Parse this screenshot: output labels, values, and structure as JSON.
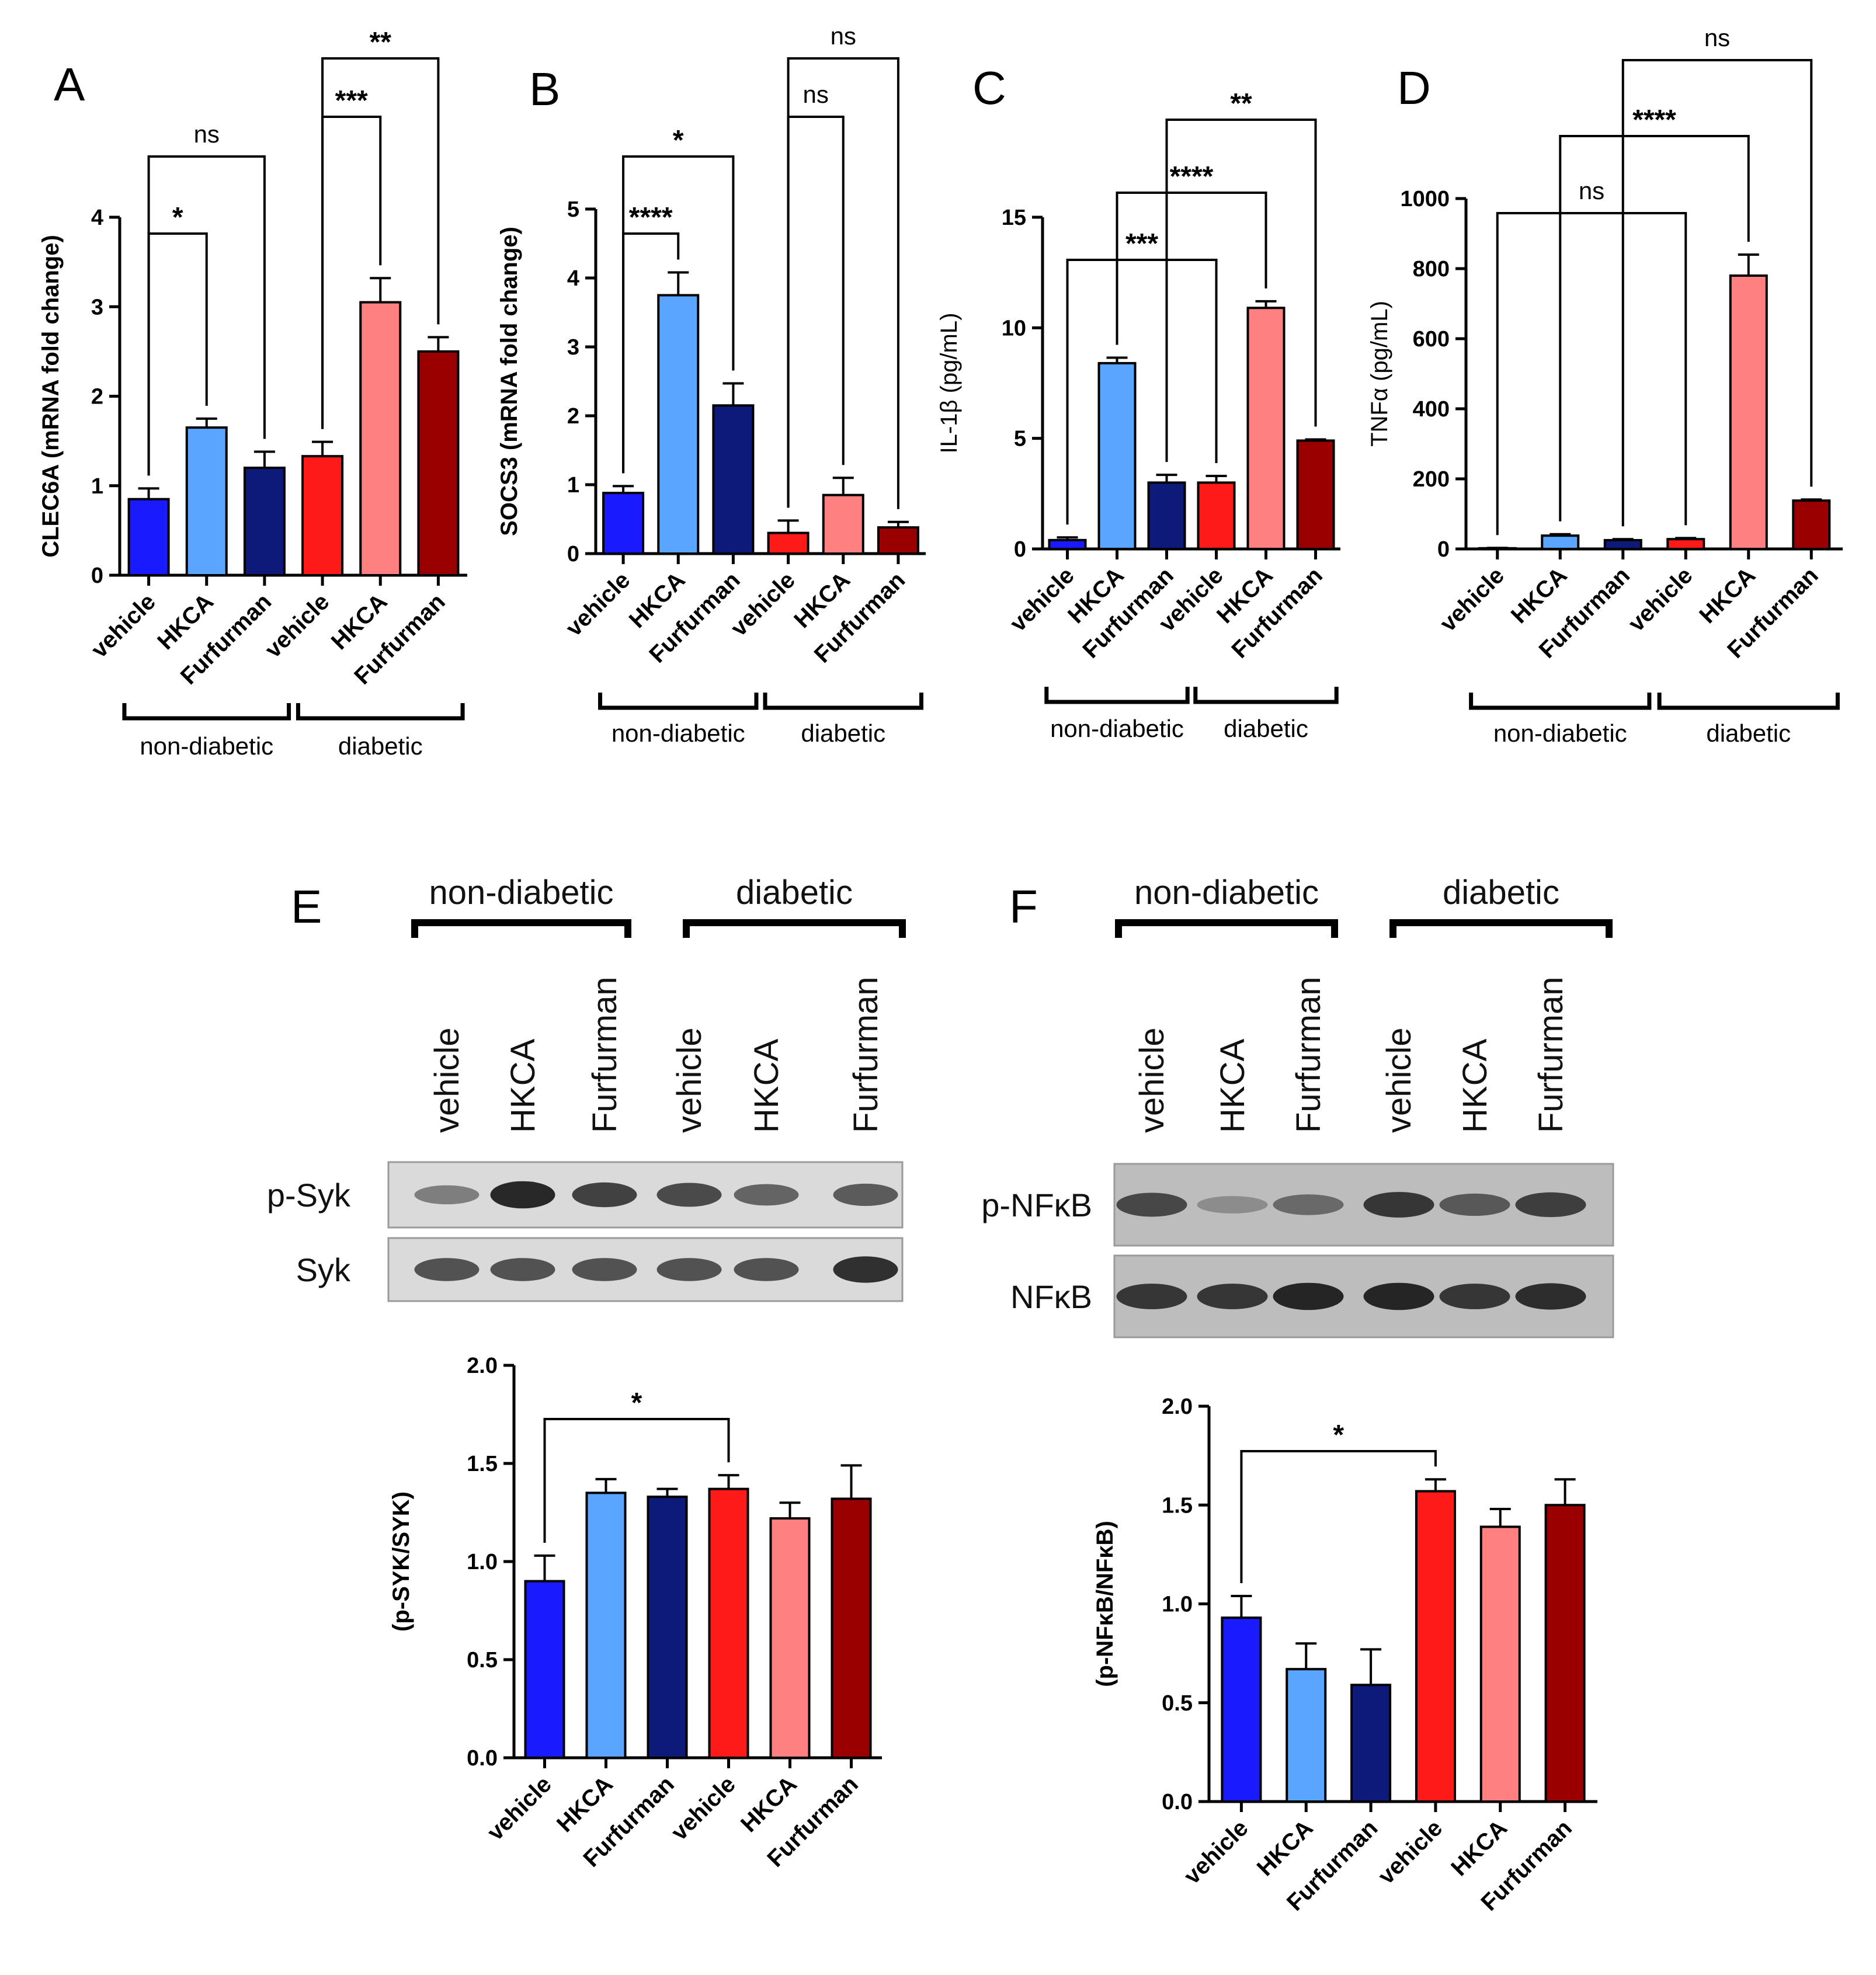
{
  "colors": {
    "blue": "#1a1aff",
    "light_blue": "#5aa5ff",
    "navy": "#0d1a7a",
    "red": "#ff1a1a",
    "pink": "#ff8080",
    "dark_red": "#9b0000",
    "black": "#000000"
  },
  "chart_data": [
    {
      "id": "A",
      "panel_label": "A",
      "type": "bar",
      "ylabel": "CLEC6A (mRNA fold change)",
      "categories": [
        "vehicle",
        "HKCA",
        "Furfurman",
        "vehicle",
        "HKCA",
        "Furfurman"
      ],
      "values": [
        0.85,
        1.65,
        1.2,
        1.33,
        3.05,
        2.5
      ],
      "errors": [
        0.12,
        0.1,
        0.18,
        0.16,
        0.27,
        0.16
      ],
      "ylim": [
        0,
        4
      ],
      "yticks": [
        "0",
        "1",
        "2",
        "3",
        "4"
      ],
      "groups": [
        "non-diabetic",
        "diabetic"
      ],
      "comparisons": [
        {
          "from": 0,
          "to": 1,
          "label": "*"
        },
        {
          "from": 0,
          "to": 2,
          "label": "ns"
        },
        {
          "from": 3,
          "to": 4,
          "label": "***"
        },
        {
          "from": 3,
          "to": 5,
          "label": "**"
        }
      ]
    },
    {
      "id": "B",
      "panel_label": "B",
      "type": "bar",
      "ylabel": "SOCS3 (mRNA fold change)",
      "categories": [
        "vehicle",
        "HKCA",
        "Furfurman",
        "vehicle",
        "HKCA",
        "Furfurman"
      ],
      "values": [
        0.88,
        3.75,
        2.15,
        0.3,
        0.85,
        0.38
      ],
      "errors": [
        0.1,
        0.33,
        0.32,
        0.18,
        0.25,
        0.08
      ],
      "ylim": [
        0,
        5
      ],
      "yticks": [
        "0",
        "1",
        "2",
        "3",
        "4",
        "5"
      ],
      "groups": [
        "non-diabetic",
        "diabetic"
      ],
      "comparisons": [
        {
          "from": 0,
          "to": 1,
          "label": "****"
        },
        {
          "from": 0,
          "to": 2,
          "label": "*"
        },
        {
          "from": 3,
          "to": 4,
          "label": "ns"
        },
        {
          "from": 3,
          "to": 5,
          "label": "ns"
        }
      ]
    },
    {
      "id": "C",
      "panel_label": "C",
      "type": "bar",
      "ylabel": "IL-1β (pg/mL)",
      "categories": [
        "vehicle",
        "HKCA",
        "Furfurman",
        "vehicle",
        "HKCA",
        "Furfurman"
      ],
      "values": [
        0.4,
        8.4,
        3.0,
        3.0,
        10.9,
        4.9
      ],
      "errors": [
        0.12,
        0.25,
        0.35,
        0.3,
        0.3,
        0.05
      ],
      "ylim": [
        0,
        15
      ],
      "yticks": [
        "0",
        "5",
        "10",
        "15"
      ],
      "groups": [
        "non-diabetic",
        "diabetic"
      ],
      "comparisons": [
        {
          "from": 0,
          "to": 3,
          "label": "***"
        },
        {
          "from": 1,
          "to": 4,
          "label": "****"
        },
        {
          "from": 2,
          "to": 5,
          "label": "**"
        }
      ]
    },
    {
      "id": "D",
      "panel_label": "D",
      "type": "bar",
      "ylabel": "TNFα (pg/mL)",
      "categories": [
        "vehicle",
        "HKCA",
        "Furfurman",
        "vehicle",
        "HKCA",
        "Furfurman"
      ],
      "values": [
        2,
        38,
        25,
        28,
        780,
        138
      ],
      "errors": [
        1,
        4,
        3,
        3,
        60,
        3
      ],
      "ylim": [
        0,
        1000
      ],
      "yticks": [
        "0",
        "200",
        "400",
        "600",
        "800",
        "1000"
      ],
      "groups": [
        "non-diabetic",
        "diabetic"
      ],
      "comparisons": [
        {
          "from": 0,
          "to": 3,
          "label": "ns"
        },
        {
          "from": 1,
          "to": 4,
          "label": "****"
        },
        {
          "from": 2,
          "to": 5,
          "label": "ns"
        }
      ]
    },
    {
      "id": "E",
      "panel_label": "E",
      "type": "bar",
      "ylabel": "(p-SYK/SYK)",
      "categories": [
        "vehicle",
        "HKCA",
        "Furfurman",
        "vehicle",
        "HKCA",
        "Furfurman"
      ],
      "values": [
        0.9,
        1.35,
        1.33,
        1.37,
        1.22,
        1.32
      ],
      "errors": [
        0.13,
        0.07,
        0.04,
        0.07,
        0.08,
        0.17
      ],
      "ylim": [
        0,
        2
      ],
      "yticks": [
        "0.0",
        "0.5",
        "1.0",
        "1.5",
        "2.0"
      ],
      "comparisons": [
        {
          "from": 0,
          "to": 3,
          "label": "*"
        }
      ]
    },
    {
      "id": "F",
      "panel_label": "F",
      "type": "bar",
      "ylabel": "(p-NFκB/NFκB)",
      "categories": [
        "vehicle",
        "HKCA",
        "Furfurman",
        "vehicle",
        "HKCA",
        "Furfurman"
      ],
      "values": [
        0.93,
        0.67,
        0.59,
        1.57,
        1.39,
        1.5
      ],
      "errors": [
        0.11,
        0.13,
        0.18,
        0.06,
        0.09,
        0.13
      ],
      "ylim": [
        0,
        2
      ],
      "yticks": [
        "0.0",
        "0.5",
        "1.0",
        "1.5",
        "2.0"
      ],
      "comparisons": [
        {
          "from": 0,
          "to": 3,
          "label": "*"
        }
      ]
    }
  ],
  "blots": [
    {
      "panel": "E",
      "groups": [
        "non-diabetic",
        "diabetic"
      ],
      "lanes": [
        "vehicle",
        "HKCA",
        "Furfurman",
        "vehicle",
        "HKCA",
        "Furfurman"
      ],
      "rows": [
        {
          "label": "p-Syk",
          "intensity": [
            0.45,
            0.95,
            0.8,
            0.75,
            0.6,
            0.65
          ]
        },
        {
          "label": "Syk",
          "intensity": [
            0.7,
            0.7,
            0.7,
            0.7,
            0.7,
            0.9
          ]
        }
      ]
    },
    {
      "panel": "F",
      "groups": [
        "non-diabetic",
        "diabetic"
      ],
      "lanes": [
        "vehicle",
        "HKCA",
        "Furfurman",
        "vehicle",
        "HKCA",
        "Furfurman"
      ],
      "rows": [
        {
          "label": "p-NFκB",
          "intensity": [
            0.75,
            0.35,
            0.55,
            0.85,
            0.65,
            0.8
          ]
        },
        {
          "label": "NFκB",
          "intensity": [
            0.85,
            0.85,
            0.95,
            0.95,
            0.85,
            0.9
          ]
        }
      ]
    }
  ]
}
